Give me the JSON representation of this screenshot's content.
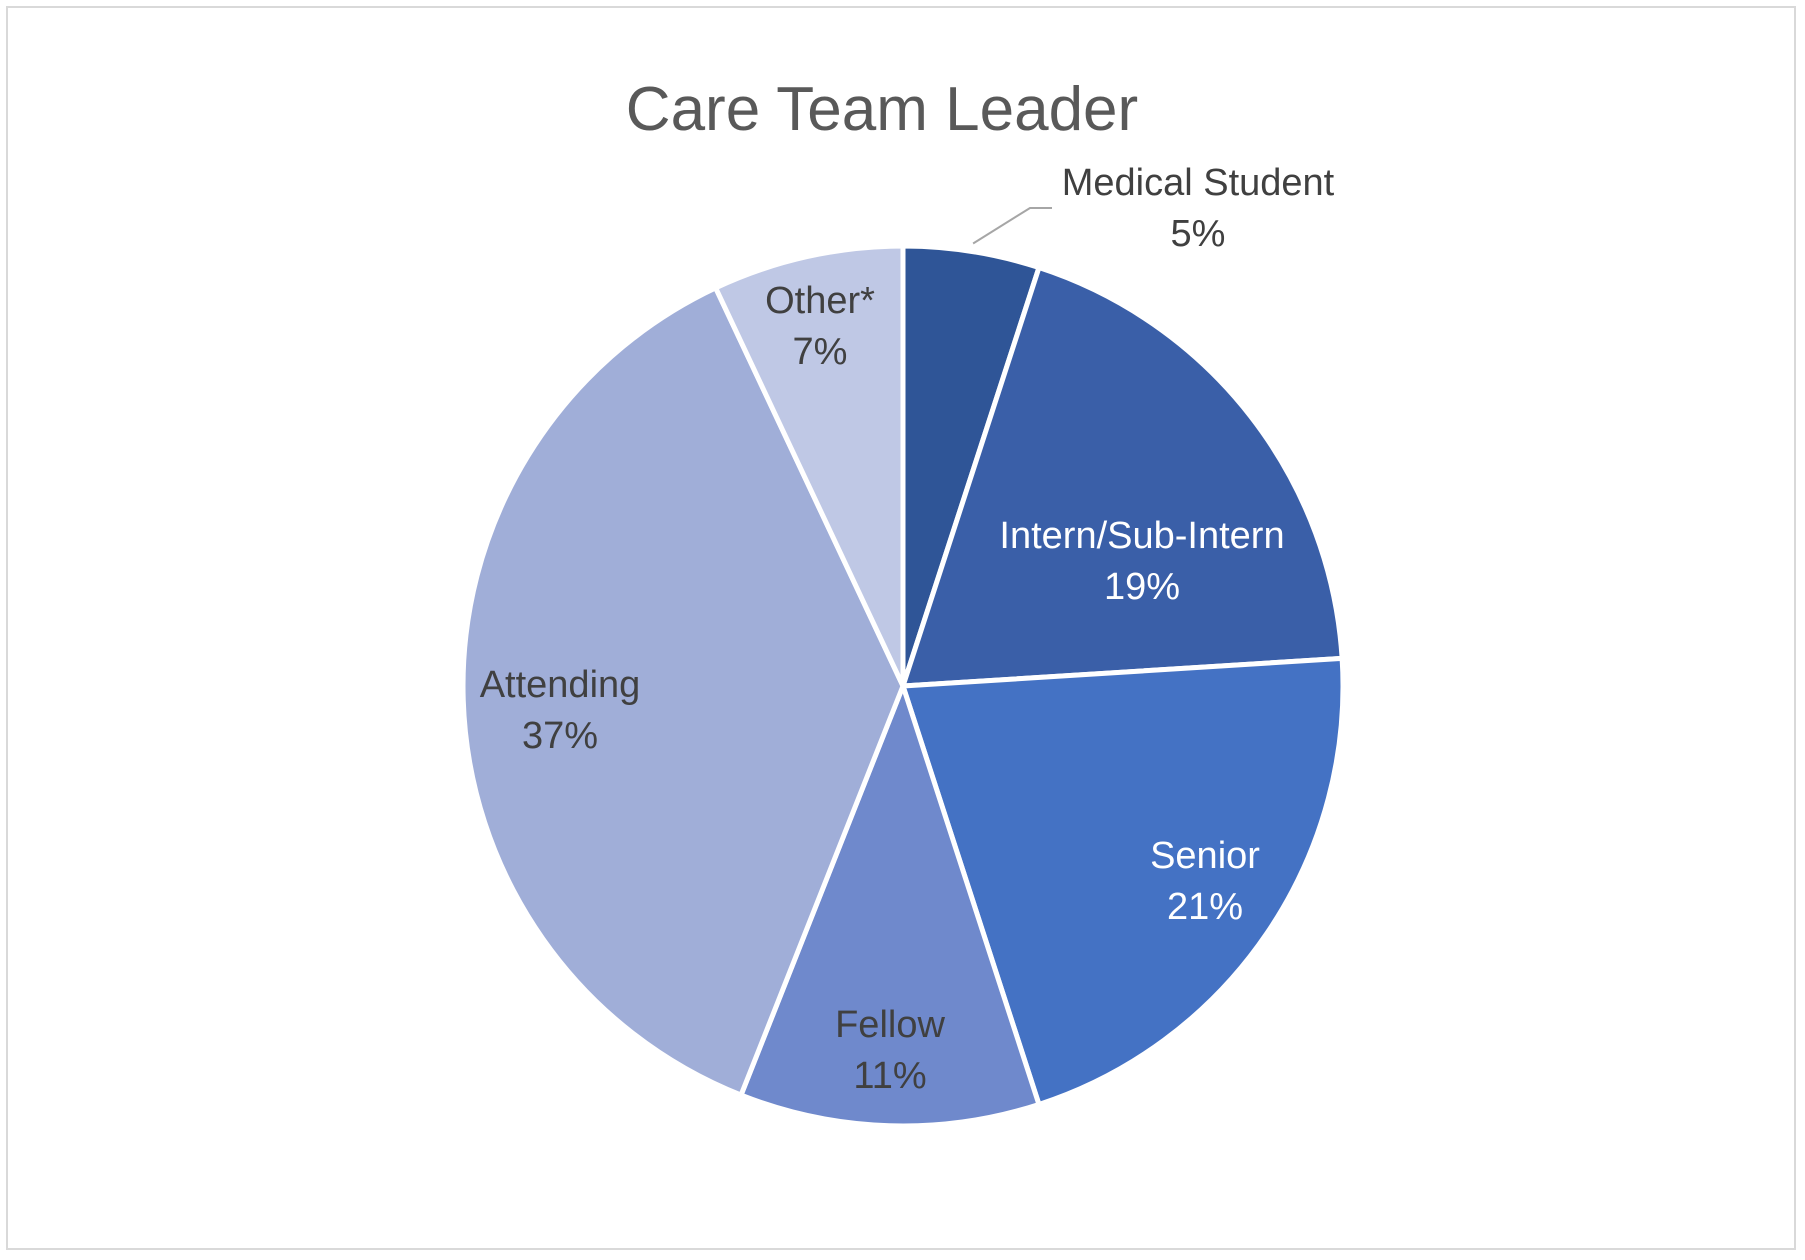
{
  "chart_data": {
    "type": "pie",
    "title": "Care Team Leader",
    "start_angle_deg": 0,
    "direction": "clockwise",
    "slices": [
      {
        "label": "Medical Student",
        "value": 5,
        "value_label": "5%",
        "color": "#2f5597",
        "label_color": "#404040"
      },
      {
        "label": "Intern/Sub-Intern",
        "value": 19,
        "value_label": "19%",
        "color": "#3a5fa8",
        "label_color": "#ffffff"
      },
      {
        "label": "Senior",
        "value": 21,
        "value_label": "21%",
        "color": "#4472c4",
        "label_color": "#ffffff"
      },
      {
        "label": "Fellow",
        "value": 11,
        "value_label": "11%",
        "color": "#6f89cc",
        "label_color": "#404040"
      },
      {
        "label": "Attending",
        "value": 37,
        "value_label": "37%",
        "color": "#a0aed8",
        "label_color": "#404040"
      },
      {
        "label": "Other*",
        "value": 7,
        "value_label": "7%",
        "color": "#bfc8e5",
        "label_color": "#404040"
      }
    ],
    "leader_line_color": "#a6a6a6",
    "border_color": "#d9d9d9"
  }
}
